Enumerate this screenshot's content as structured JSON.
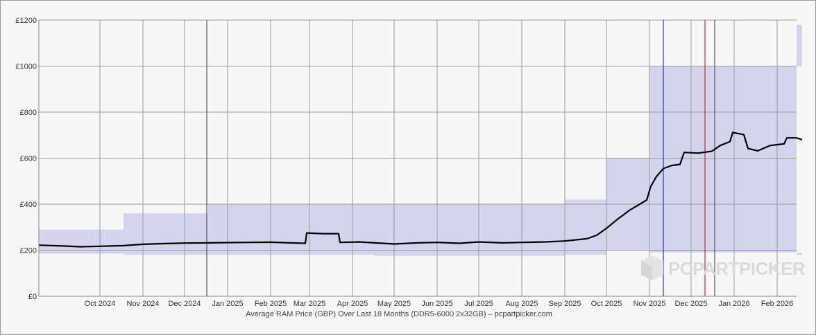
{
  "chart_data": {
    "type": "line",
    "xlabel": "Average RAM Price (GBP) Over Last 18 Months (DDR5-6000 2x32GB) – pcpartpicker.com",
    "ylabel": "",
    "ylim": [
      0,
      1200
    ],
    "y_ticks": [
      {
        "value": 0,
        "label": "£0"
      },
      {
        "value": 200,
        "label": "£200"
      },
      {
        "value": 400,
        "label": "£400"
      },
      {
        "value": 600,
        "label": "£600"
      },
      {
        "value": 800,
        "label": "£800"
      },
      {
        "value": 1000,
        "label": "£1000"
      },
      {
        "value": 1200,
        "label": "£1200"
      }
    ],
    "x_range": [
      "2024-09-01",
      "2026-03-01"
    ],
    "x_ticks": [
      {
        "date": "2024-10-15",
        "label": "Oct 2024"
      },
      {
        "date": "2024-11-15",
        "label": "Nov 2024"
      },
      {
        "date": "2024-12-15",
        "label": "Dec 2024"
      },
      {
        "date": "2025-01-15",
        "label": "Jan 2025"
      },
      {
        "date": "2025-02-15",
        "label": "Feb 2025"
      },
      {
        "date": "2025-03-15",
        "label": "Mar 2025"
      },
      {
        "date": "2025-04-15",
        "label": "Apr 2025"
      },
      {
        "date": "2025-05-15",
        "label": "May 2025"
      },
      {
        "date": "2025-06-15",
        "label": "Jun 2025"
      },
      {
        "date": "2025-07-15",
        "label": "Jul 2025"
      },
      {
        "date": "2025-08-15",
        "label": "Aug 2025"
      },
      {
        "date": "2025-09-15",
        "label": "Sep 2025"
      },
      {
        "date": "2025-10-15",
        "label": "Oct 2025"
      },
      {
        "date": "2025-11-15",
        "label": "Nov 2025"
      },
      {
        "date": "2025-12-15",
        "label": "Dec 2025"
      },
      {
        "date": "2026-01-15",
        "label": "Jan 2026"
      },
      {
        "date": "2026-02-15",
        "label": "Feb 2026"
      }
    ],
    "series": [
      {
        "color": "#000000",
        "points": [
          [
            "2024-09-01",
            222
          ],
          [
            "2024-09-20",
            218
          ],
          [
            "2024-10-01",
            215
          ],
          [
            "2024-10-15",
            217
          ],
          [
            "2024-11-01",
            220
          ],
          [
            "2024-11-15",
            226
          ],
          [
            "2024-12-01",
            229
          ],
          [
            "2024-12-15",
            231
          ],
          [
            "2025-01-01",
            232
          ],
          [
            "2025-01-15",
            233
          ],
          [
            "2025-02-01",
            234
          ],
          [
            "2025-02-15",
            235
          ],
          [
            "2025-03-01",
            232
          ],
          [
            "2025-03-12",
            230
          ],
          [
            "2025-03-13",
            275
          ],
          [
            "2025-03-25",
            272
          ],
          [
            "2025-04-05",
            272
          ],
          [
            "2025-04-06",
            234
          ],
          [
            "2025-04-20",
            236
          ],
          [
            "2025-05-01",
            232
          ],
          [
            "2025-05-15",
            227
          ],
          [
            "2025-06-01",
            232
          ],
          [
            "2025-06-15",
            234
          ],
          [
            "2025-07-01",
            230
          ],
          [
            "2025-07-15",
            236
          ],
          [
            "2025-08-01",
            232
          ],
          [
            "2025-08-15",
            234
          ],
          [
            "2025-09-01",
            236
          ],
          [
            "2025-09-15",
            240
          ],
          [
            "2025-10-01",
            250
          ],
          [
            "2025-10-08",
            265
          ],
          [
            "2025-10-15",
            295
          ],
          [
            "2025-10-22",
            330
          ],
          [
            "2025-11-01",
            375
          ],
          [
            "2025-11-08",
            400
          ],
          [
            "2025-11-13",
            418
          ],
          [
            "2025-11-16",
            478
          ],
          [
            "2025-11-20",
            520
          ],
          [
            "2025-11-25",
            555
          ],
          [
            "2025-12-01",
            568
          ],
          [
            "2025-12-07",
            573
          ],
          [
            "2025-12-10",
            625
          ],
          [
            "2025-12-20",
            622
          ],
          [
            "2025-12-30",
            630
          ],
          [
            "2026-01-05",
            655
          ],
          [
            "2026-01-12",
            672
          ],
          [
            "2026-01-14",
            712
          ],
          [
            "2026-01-22",
            702
          ],
          [
            "2026-01-25",
            642
          ],
          [
            "2026-02-01",
            632
          ],
          [
            "2026-02-10",
            655
          ],
          [
            "2026-02-20",
            662
          ],
          [
            "2026-02-22",
            688
          ],
          [
            "2026-03-01",
            688
          ],
          [
            "2026-03-05",
            680
          ]
        ]
      }
    ],
    "price_range_band": {
      "color": "#5060e0",
      "bands": [
        [
          "2024-09-01",
          185,
          290
        ],
        [
          "2024-11-01",
          180,
          360
        ],
        [
          "2025-01-01",
          180,
          400
        ],
        [
          "2025-05-01",
          175,
          400
        ],
        [
          "2025-09-15",
          180,
          420
        ],
        [
          "2025-10-15",
          200,
          600
        ],
        [
          "2025-11-15",
          190,
          1000
        ],
        [
          "2026-03-05",
          180,
          1180
        ]
      ]
    },
    "vertical_markers": [
      {
        "date": "2024-12-31",
        "color": "#555555"
      },
      {
        "date": "2025-11-25",
        "color": "#2233cc"
      },
      {
        "date": "2025-12-25",
        "color": "#dd2222"
      },
      {
        "date": "2026-01-01",
        "color": "#555555"
      }
    ],
    "watermark": "PCPARTPICKER",
    "colors": {
      "background": "#f7f7f7",
      "grid": "#9a9a9a",
      "line": "#000000",
      "band": "#5060e0",
      "watermark_accent": "#e8832a"
    }
  }
}
